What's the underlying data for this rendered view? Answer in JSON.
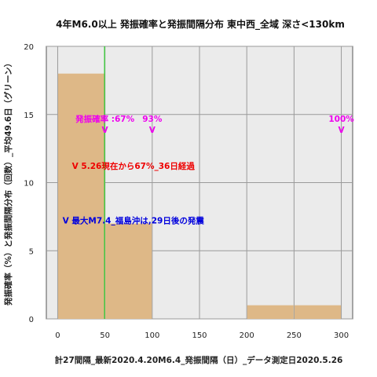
{
  "chart_data": {
    "type": "bar",
    "title": "4年M6.0以上 発振確率と発振間隔分布 東中西_全域 深さ<130km",
    "xlabel": "計27間隔_最新2020.4.20M6.4_発振間隔（日）_データ測定日2020.5.26",
    "ylabel": "発振確率（%）と発振間隔分布（回数）_平均49.6日（グリーン）",
    "xlim": [
      -12,
      312
    ],
    "ylim": [
      0,
      20
    ],
    "xticks": [
      "0",
      "50",
      "100",
      "150",
      "200",
      "250",
      "300"
    ],
    "yticks": [
      "0",
      "5",
      "10",
      "15",
      "20"
    ],
    "grid": true,
    "bar_color": "#deb887",
    "bars": [
      {
        "x0": 0,
        "x1": 50,
        "value": 18
      },
      {
        "x0": 50,
        "x1": 100,
        "value": 7
      },
      {
        "x0": 200,
        "x1": 250,
        "value": 1
      },
      {
        "x0": 250,
        "x1": 300,
        "value": 1
      }
    ],
    "mean_line": {
      "x": 49.6,
      "color": "#33cc33"
    },
    "markers": [
      {
        "x": 50,
        "y": 14,
        "label": "発振確率 :67%",
        "glyph": "V"
      },
      {
        "x": 100,
        "y": 14,
        "label": "93%",
        "glyph": "V"
      },
      {
        "x": 300,
        "y": 14,
        "label": "100%",
        "glyph": "V"
      }
    ],
    "annotations": [
      {
        "text": "V 5.26現在から67%_36日経過",
        "x": 80,
        "y": 11,
        "color": "#ee0000"
      },
      {
        "text": "V 最大M7.4_福島沖は,29日後の発震",
        "x": 80,
        "y": 7,
        "color": "#0000dd"
      }
    ]
  }
}
